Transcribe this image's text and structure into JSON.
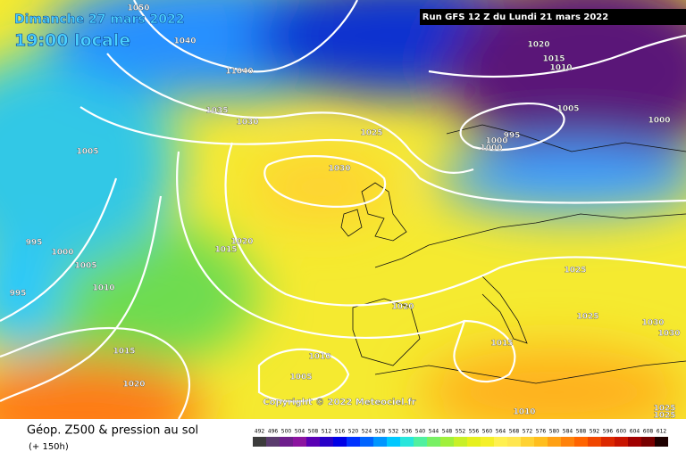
{
  "header": {
    "date": "Dimanche 27 mars 2022",
    "time": "19:00 locale",
    "run": "Run GFS 12 Z du Lundi 21 mars 2022"
  },
  "isobar_labels": [
    "1050",
    "1040",
    "11040",
    "1035",
    "1030",
    "1025",
    "1030",
    "1005",
    "995",
    "1000",
    "1005",
    "995",
    "1010",
    "1020",
    "1015",
    "1015",
    "1020",
    "1005",
    "1010",
    "1020",
    "1015",
    "1010",
    "1025",
    "1025",
    "1030",
    "1030",
    "1025",
    "1025",
    "1020",
    "1015",
    "1010",
    "1005",
    "995",
    "1000",
    "1000",
    "1000"
  ],
  "copyright": "Copyright © 2022 Meteociel.fr",
  "footer": {
    "title": "Géop. Z500 & pression au sol",
    "lead": "(+ 150h)"
  },
  "legend": {
    "values": [
      492,
      496,
      500,
      504,
      508,
      512,
      516,
      520,
      524,
      528,
      532,
      536,
      540,
      544,
      548,
      552,
      556,
      560,
      564,
      568,
      572,
      576,
      580,
      584,
      588,
      592,
      596,
      600,
      604,
      608,
      612
    ],
    "colors": [
      "#3c3c3c",
      "#5a3c6e",
      "#6e1e8c",
      "#8c14a0",
      "#5a00b4",
      "#2800c8",
      "#0000e6",
      "#0032ff",
      "#0064ff",
      "#0096ff",
      "#00c8ff",
      "#28e6dc",
      "#50f0a0",
      "#78f064",
      "#a0f03c",
      "#c8f028",
      "#e6f01e",
      "#f5f028",
      "#fff050",
      "#ffe650",
      "#ffd232",
      "#ffbe1e",
      "#ffa014",
      "#ff820a",
      "#ff6400",
      "#f04600",
      "#dc2800",
      "#c81400",
      "#a00000",
      "#780000",
      "#1e0000"
    ]
  }
}
